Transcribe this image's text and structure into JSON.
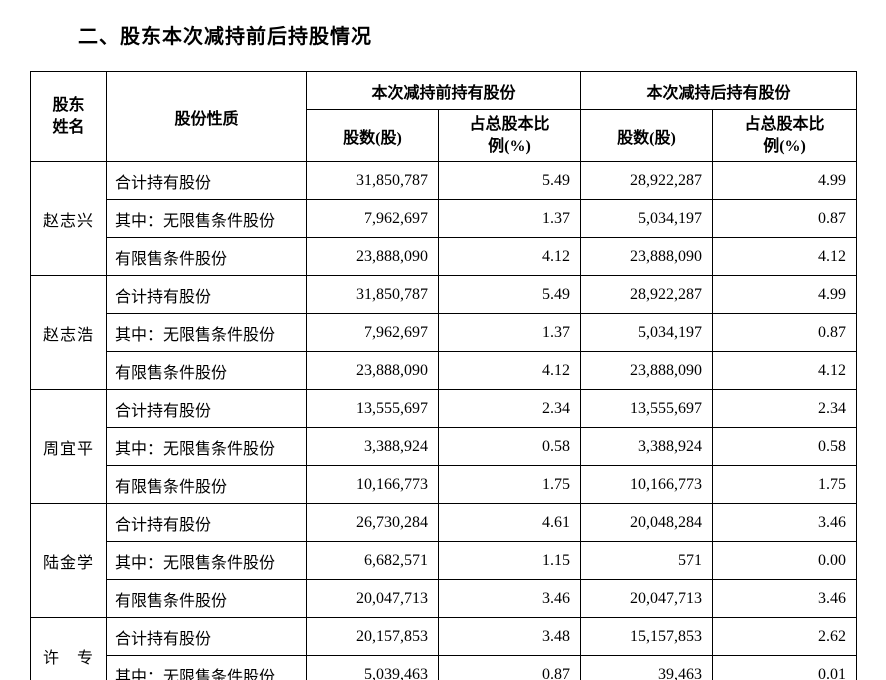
{
  "heading": "二、股东本次减持前后持股情况",
  "headers": {
    "name": "股东姓名",
    "type": "股份性质",
    "before_group": "本次减持前持有股份",
    "after_group": "本次减持后持有股份",
    "shares": "股数(股)",
    "pct": "占总股本比例(%)"
  },
  "row_labels": {
    "total": "合计持有股份",
    "unrestricted": "其中：无限售条件股份",
    "restricted": "有限售条件股份"
  },
  "holders": [
    {
      "name": "赵志兴",
      "rows": [
        {
          "type_key": "total",
          "b_sh": "31,850,787",
          "b_pct": "5.49",
          "a_sh": "28,922,287",
          "a_pct": "4.99"
        },
        {
          "type_key": "unrestricted",
          "b_sh": "7,962,697",
          "b_pct": "1.37",
          "a_sh": "5,034,197",
          "a_pct": "0.87"
        },
        {
          "type_key": "restricted",
          "b_sh": "23,888,090",
          "b_pct": "4.12",
          "a_sh": "23,888,090",
          "a_pct": "4.12"
        }
      ]
    },
    {
      "name": "赵志浩",
      "rows": [
        {
          "type_key": "total",
          "b_sh": "31,850,787",
          "b_pct": "5.49",
          "a_sh": "28,922,287",
          "a_pct": "4.99"
        },
        {
          "type_key": "unrestricted",
          "b_sh": "7,962,697",
          "b_pct": "1.37",
          "a_sh": "5,034,197",
          "a_pct": "0.87"
        },
        {
          "type_key": "restricted",
          "b_sh": "23,888,090",
          "b_pct": "4.12",
          "a_sh": "23,888,090",
          "a_pct": "4.12"
        }
      ]
    },
    {
      "name": "周宜平",
      "rows": [
        {
          "type_key": "total",
          "b_sh": "13,555,697",
          "b_pct": "2.34",
          "a_sh": "13,555,697",
          "a_pct": "2.34"
        },
        {
          "type_key": "unrestricted",
          "b_sh": "3,388,924",
          "b_pct": "0.58",
          "a_sh": "3,388,924",
          "a_pct": "0.58"
        },
        {
          "type_key": "restricted",
          "b_sh": "10,166,773",
          "b_pct": "1.75",
          "a_sh": "10,166,773",
          "a_pct": "1.75"
        }
      ]
    },
    {
      "name": "陆金学",
      "rows": [
        {
          "type_key": "total",
          "b_sh": "26,730,284",
          "b_pct": "4.61",
          "a_sh": "20,048,284",
          "a_pct": "3.46"
        },
        {
          "type_key": "unrestricted",
          "b_sh": "6,682,571",
          "b_pct": "1.15",
          "a_sh": "571",
          "a_pct": "0.00"
        },
        {
          "type_key": "restricted",
          "b_sh": "20,047,713",
          "b_pct": "3.46",
          "a_sh": "20,047,713",
          "a_pct": "3.46"
        }
      ]
    },
    {
      "name": "许　专",
      "rows": [
        {
          "type_key": "total",
          "b_sh": "20,157,853",
          "b_pct": "3.48",
          "a_sh": "15,157,853",
          "a_pct": "2.62"
        },
        {
          "type_key": "unrestricted",
          "b_sh": "5,039,463",
          "b_pct": "0.87",
          "a_sh": "39,463",
          "a_pct": "0.01"
        }
      ]
    }
  ]
}
